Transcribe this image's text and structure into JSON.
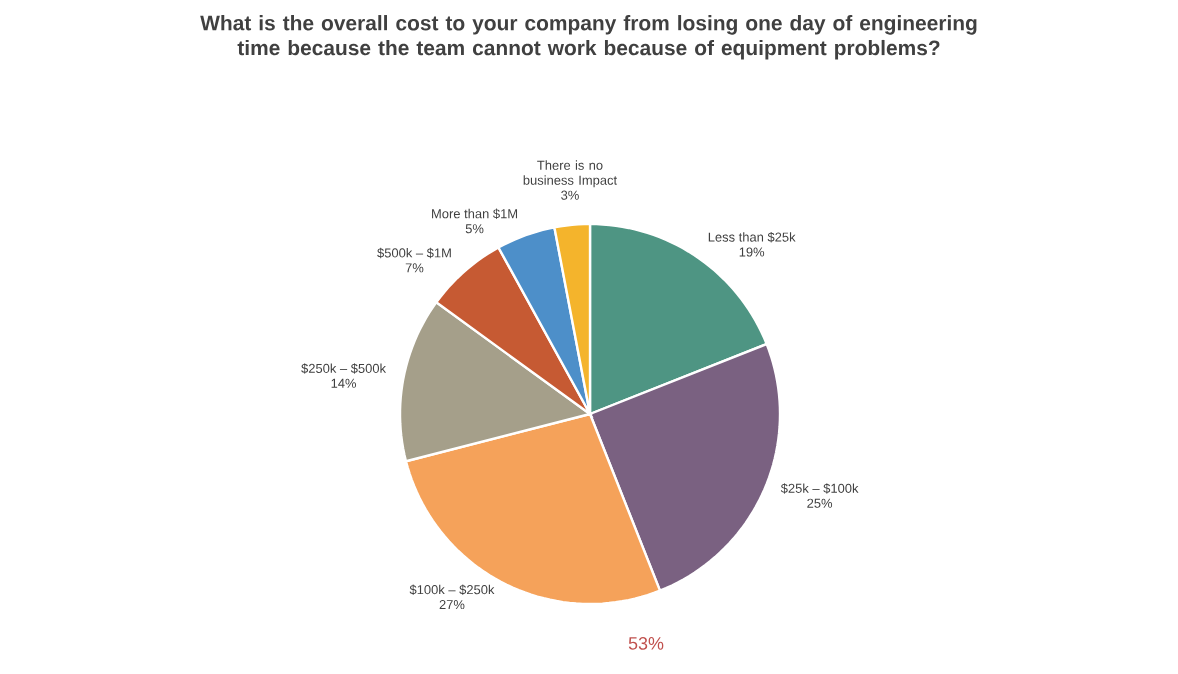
{
  "chart_data": {
    "type": "pie",
    "title": "What is the overall cost to your company from losing one day of engineering time because the team cannot work because of equipment problems?",
    "categories": [
      "Less than $25k",
      "$25k – $100k",
      "$100k – $250k",
      "$250k – $500k",
      "$500k – $1M",
      "More than $1M",
      "There is no business Impact"
    ],
    "values": [
      19,
      25,
      27,
      14,
      7,
      5,
      3
    ],
    "value_labels": [
      "19%",
      "25%",
      "27%",
      "14%",
      "7%",
      "5%",
      "3%"
    ],
    "colors": [
      "#4e9583",
      "#7a6181",
      "#f5a25a",
      "#a59f8a",
      "#c65a33",
      "#4d8fc9",
      "#f4b42c"
    ],
    "annotations": [
      "53%"
    ]
  }
}
